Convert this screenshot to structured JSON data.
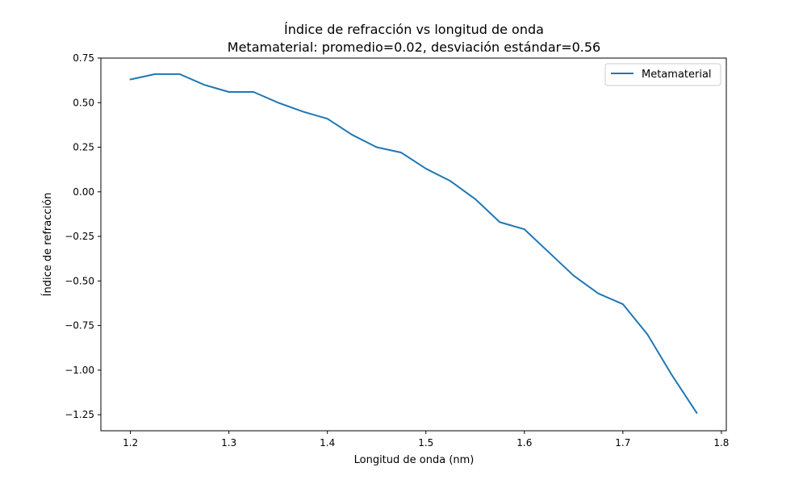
{
  "chart_data": {
    "type": "line",
    "title": "Índice de refracción vs longitud de onda",
    "subtitle": "Metamaterial: promedio=0.02, desviación estándar=0.56",
    "xlabel": "Longitud de onda (nm)",
    "ylabel": "Índice de refracción",
    "xlim": [
      1.17,
      1.805
    ],
    "ylim": [
      -1.34,
      0.75
    ],
    "xticks": [
      1.2,
      1.3,
      1.4,
      1.5,
      1.6,
      1.7,
      1.8
    ],
    "xtick_labels": [
      "1.2",
      "1.3",
      "1.4",
      "1.5",
      "1.6",
      "1.7",
      "1.8"
    ],
    "yticks": [
      0.75,
      0.5,
      0.25,
      0.0,
      -0.25,
      -0.5,
      -0.75,
      -1.0,
      -1.25
    ],
    "ytick_labels": [
      "0.75",
      "0.50",
      "0.25",
      "0.00",
      "−0.25",
      "−0.50",
      "−0.75",
      "−1.00",
      "−1.25"
    ],
    "grid": false,
    "legend_position": "top-right",
    "series": [
      {
        "name": "Metamaterial",
        "color": "#1f77b4",
        "x": [
          1.2,
          1.225,
          1.25,
          1.275,
          1.3,
          1.325,
          1.35,
          1.375,
          1.4,
          1.425,
          1.45,
          1.475,
          1.5,
          1.525,
          1.55,
          1.575,
          1.6,
          1.625,
          1.65,
          1.675,
          1.7,
          1.725,
          1.75,
          1.775
        ],
        "y": [
          0.63,
          0.66,
          0.66,
          0.6,
          0.56,
          0.56,
          0.5,
          0.45,
          0.41,
          0.32,
          0.25,
          0.22,
          0.13,
          0.06,
          -0.04,
          -0.17,
          -0.21,
          -0.34,
          -0.47,
          -0.57,
          -0.63,
          -0.8,
          -1.03,
          -1.24
        ]
      }
    ]
  }
}
